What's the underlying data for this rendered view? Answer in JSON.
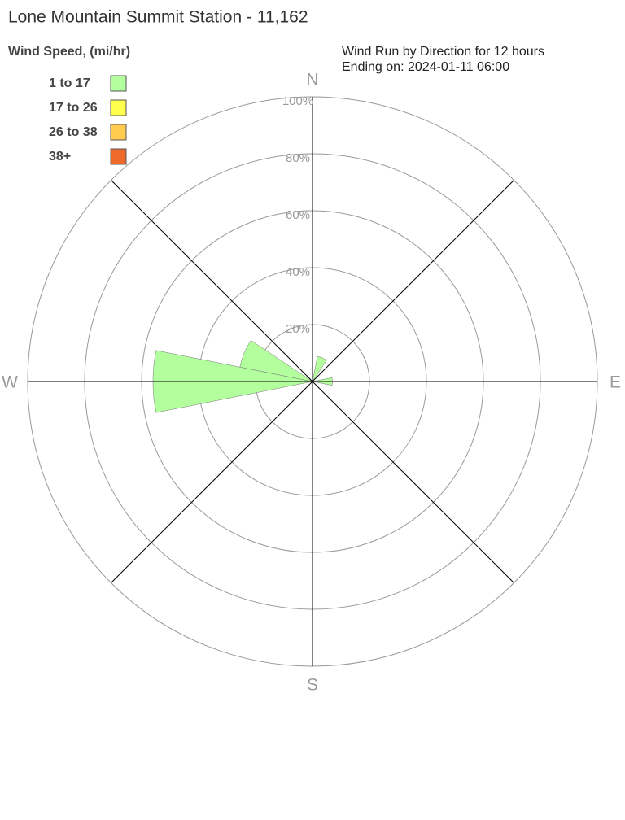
{
  "chart_data": {
    "type": "windrose",
    "title": "Lone Mountain Summit Station - 11,162",
    "legend_title": "Wind Speed, (mi/hr)",
    "subtitle": [
      "Wind Run by Direction for 12 hours",
      "Ending on: 2024-01-11 06:00"
    ],
    "categories": [
      "N",
      null,
      null,
      null,
      "E",
      null,
      null,
      null,
      "S",
      null,
      null,
      null,
      "W",
      null,
      null,
      null
    ],
    "series": [
      {
        "name": "1 to 17",
        "color": "#b3ff9e",
        "values": [
          0,
          9,
          0,
          0,
          7,
          0,
          0,
          0,
          0,
          0,
          0,
          0,
          56,
          26,
          0,
          0
        ]
      },
      {
        "name": "17 to 26",
        "color": "#ffff4d",
        "values": [
          0,
          0,
          0,
          0,
          0,
          0,
          0,
          0,
          0,
          0,
          0,
          0,
          0,
          0,
          0,
          0
        ]
      },
      {
        "name": "26 to 38",
        "color": "#ffcc4d",
        "values": [
          0,
          0,
          0,
          0,
          0,
          0,
          0,
          0,
          0,
          0,
          0,
          0,
          0,
          0,
          0,
          0
        ]
      },
      {
        "name": "38+",
        "color": "#ee6a2a",
        "values": [
          0,
          0,
          0,
          0,
          0,
          0,
          0,
          0,
          0,
          0,
          0,
          0,
          0,
          0,
          0,
          0
        ]
      }
    ],
    "rlim": [
      0,
      100
    ],
    "rticks": [
      {
        "value": 20,
        "label": "20%"
      },
      {
        "value": 40,
        "label": "40%"
      },
      {
        "value": 60,
        "label": "60%"
      },
      {
        "value": 80,
        "label": "80%"
      },
      {
        "value": 100,
        "label": "100%"
      }
    ],
    "grid": true
  }
}
